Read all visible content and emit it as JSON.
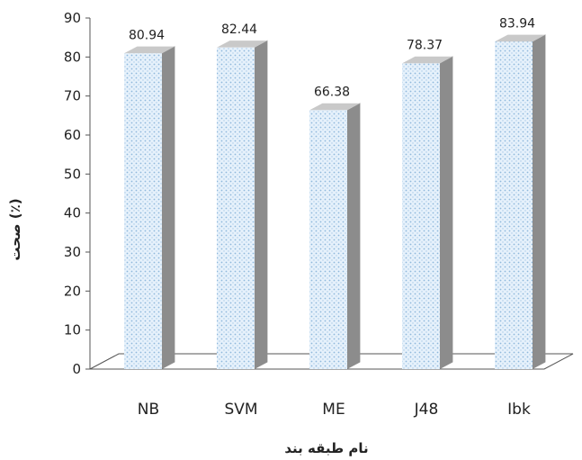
{
  "chart_data": {
    "type": "bar",
    "style": "3d",
    "categories": [
      "NB",
      "SVM",
      "ME",
      "J48",
      "Ibk"
    ],
    "values": [
      80.94,
      82.44,
      66.38,
      78.37,
      83.94
    ],
    "data_labels": [
      "80.94",
      "82.44",
      "66.38",
      "78.37",
      "83.94"
    ],
    "xlabel": "نام طبقه بند",
    "ylabel": "صحت (٪)",
    "ylim": [
      0,
      90
    ],
    "yticks": [
      0,
      10,
      20,
      30,
      40,
      50,
      60,
      70,
      80,
      90
    ],
    "grid": false,
    "legend": "none",
    "colors": {
      "bar_front": "#e6f1fb",
      "bar_dots": "#8fb8dc",
      "bar_side": "#8c8c8c",
      "bar_top": "#c9c9c9",
      "floor": "#ffffff",
      "axis": "#555555"
    }
  }
}
